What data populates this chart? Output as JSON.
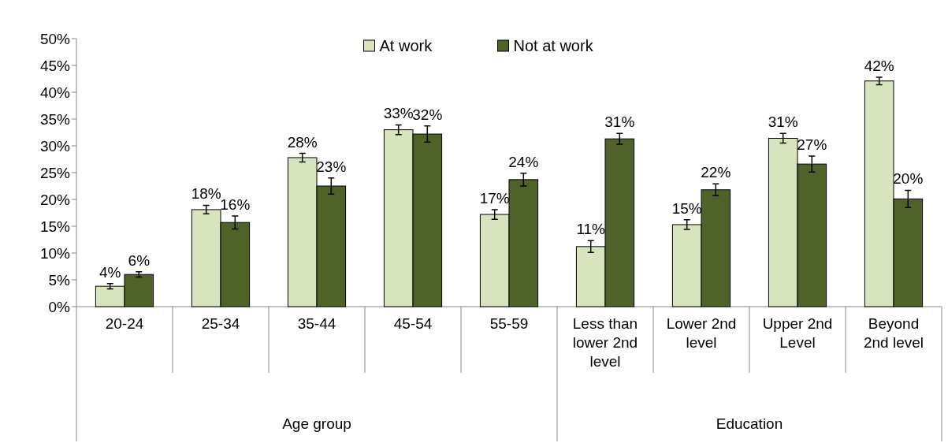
{
  "chart_data": {
    "type": "bar",
    "categories": [
      "20-24",
      "25-34",
      "35-44",
      "45-54",
      "55-59",
      "Less than lower 2nd level",
      "Lower 2nd level",
      "Upper 2nd Level",
      "Beyond 2nd level"
    ],
    "series": [
      {
        "name": "At work",
        "color": "#d7e4bd",
        "values": [
          3.8,
          18.1,
          27.8,
          33.0,
          17.2,
          11.2,
          15.3,
          31.4,
          42.1
        ],
        "errors": [
          0.5,
          0.8,
          0.8,
          0.9,
          0.9,
          1.1,
          0.9,
          0.9,
          0.7
        ],
        "value_labels": [
          "4%",
          "18%",
          "28%",
          "33%",
          "17%",
          "11%",
          "15%",
          "31%",
          "42%"
        ]
      },
      {
        "name": "Not at work",
        "color": "#4f6228",
        "values": [
          6.0,
          15.7,
          22.5,
          32.2,
          23.7,
          31.3,
          21.8,
          26.6,
          20.1
        ],
        "errors": [
          0.5,
          1.2,
          1.5,
          1.5,
          1.2,
          1.0,
          1.1,
          1.5,
          1.6
        ],
        "value_labels": [
          "6%",
          "16%",
          "23%",
          "32%",
          "24%",
          "31%",
          "22%",
          "27%",
          "20%"
        ]
      }
    ],
    "ylim": [
      0,
      50
    ],
    "yticks": [
      {
        "value": 0,
        "label": "0%"
      },
      {
        "value": 5,
        "label": "5%"
      },
      {
        "value": 10,
        "label": "10%"
      },
      {
        "value": 15,
        "label": "15%"
      },
      {
        "value": 20,
        "label": "20%"
      },
      {
        "value": 25,
        "label": "25%"
      },
      {
        "value": 30,
        "label": "30%"
      },
      {
        "value": 35,
        "label": "35%"
      },
      {
        "value": 40,
        "label": "40%"
      },
      {
        "value": 45,
        "label": "45%"
      },
      {
        "value": 50,
        "label": "50%"
      }
    ],
    "annotations": [
      "Age group",
      "Education"
    ],
    "legend": "top",
    "grid": false
  }
}
